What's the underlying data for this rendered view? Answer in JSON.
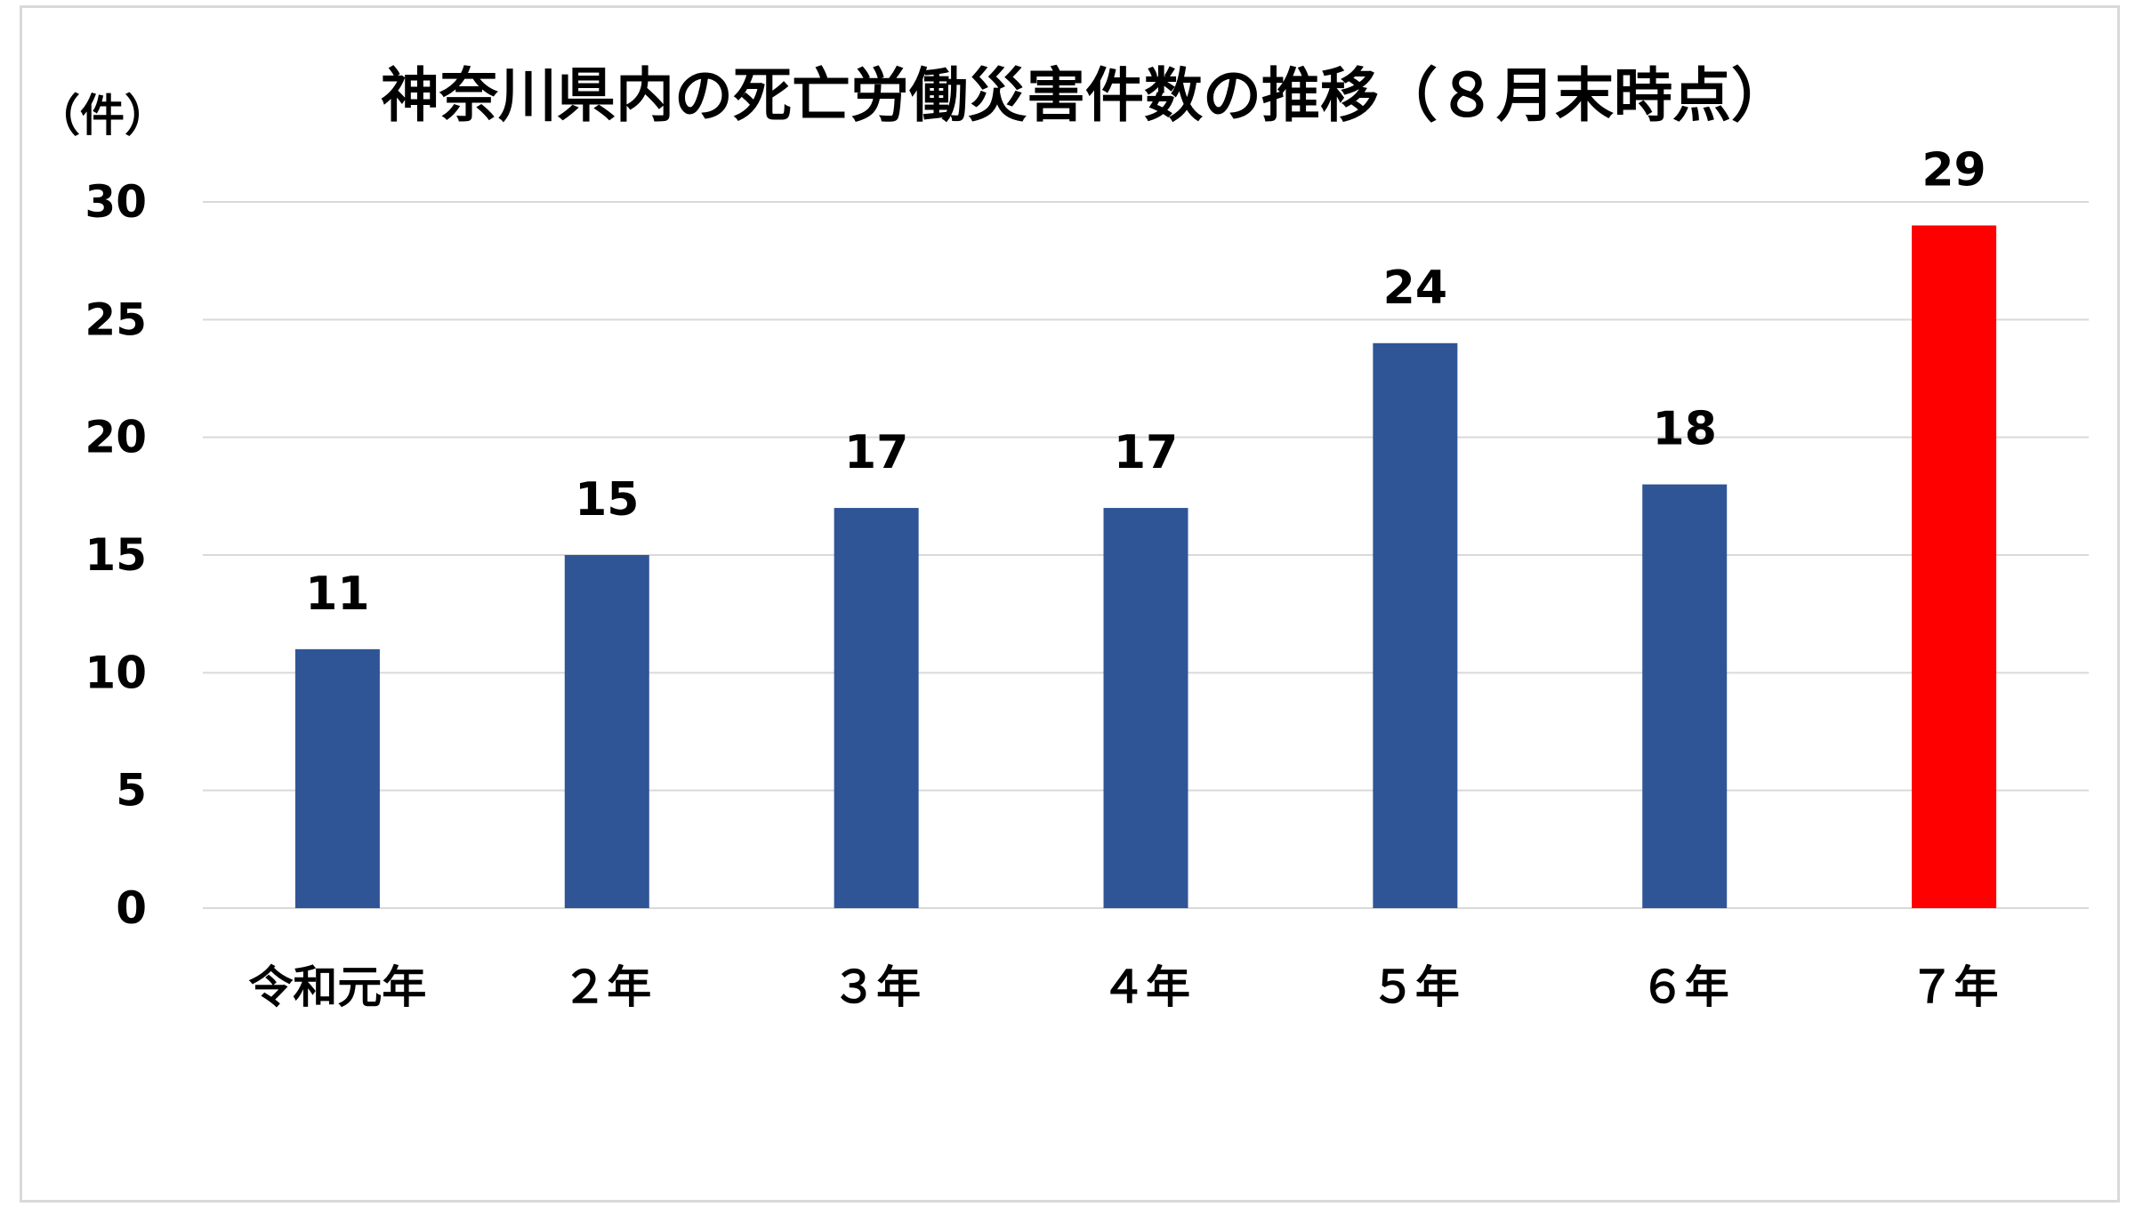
{
  "chart_data": {
    "type": "bar",
    "title": "神奈川県内の死亡労働災害件数の推移（８月末時点）",
    "ylabel": "（件）",
    "xlabel": "",
    "categories": [
      "令和元年",
      "２年",
      "３年",
      "４年",
      "５年",
      "６年",
      "７年"
    ],
    "values": [
      11,
      15,
      17,
      17,
      24,
      18,
      29
    ],
    "ylim": [
      0,
      30
    ],
    "yticks": [
      0,
      5,
      10,
      15,
      20,
      25,
      30
    ],
    "grid": true,
    "legend": "none",
    "colors": {
      "default_bar": "#2f5597",
      "highlight_bar": "#ff0000",
      "gridline": "#d9d9d9",
      "axis_line": "#d9d9d9"
    },
    "highlight_index": 6
  }
}
